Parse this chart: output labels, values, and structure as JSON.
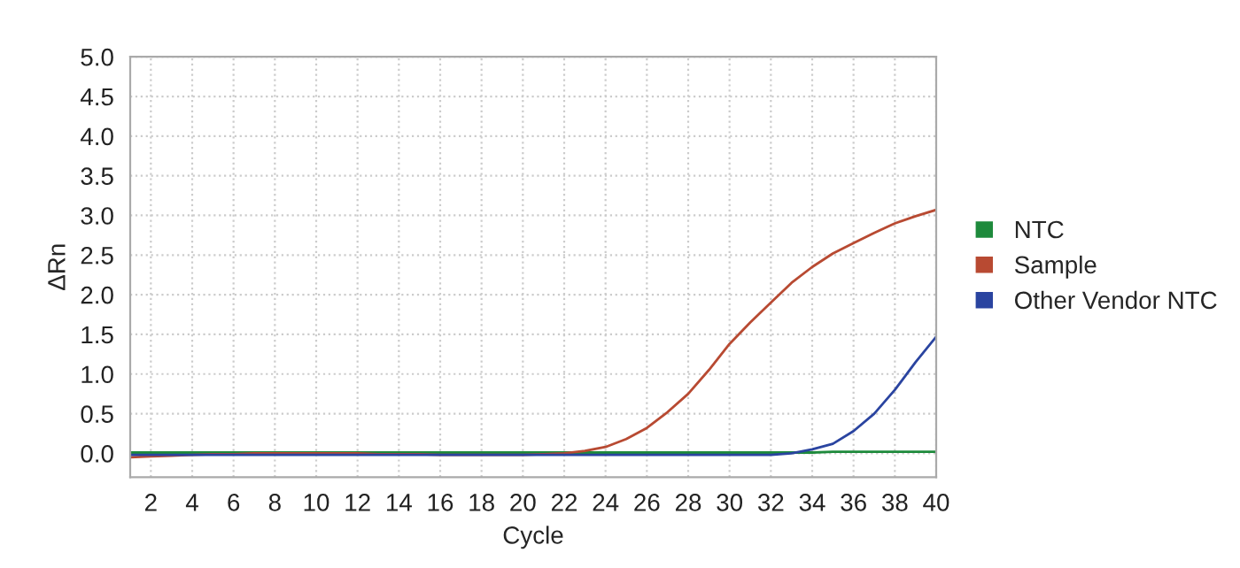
{
  "chart_data": {
    "type": "line",
    "xlabel": "Cycle",
    "ylabel": "ΔRn",
    "x": [
      1,
      2,
      3,
      4,
      5,
      6,
      7,
      8,
      9,
      10,
      11,
      12,
      13,
      14,
      15,
      16,
      17,
      18,
      19,
      20,
      21,
      22,
      23,
      24,
      25,
      26,
      27,
      28,
      29,
      30,
      31,
      32,
      33,
      34,
      35,
      36,
      37,
      38,
      39,
      40
    ],
    "series": [
      {
        "name": "NTC",
        "color": "#1e8a3c",
        "values": [
          0.01,
          0.01,
          0.01,
          0.01,
          0.01,
          0.01,
          0.01,
          0.01,
          0.01,
          0.01,
          0.01,
          0.01,
          0.01,
          0.01,
          0.01,
          0.01,
          0.01,
          0.01,
          0.01,
          0.01,
          0.01,
          0.01,
          0.01,
          0.01,
          0.01,
          0.01,
          0.01,
          0.01,
          0.01,
          0.01,
          0.01,
          0.01,
          0.01,
          0.01,
          0.02,
          0.02,
          0.02,
          0.02,
          0.02,
          0.02
        ]
      },
      {
        "name": "Sample",
        "color": "#b84a32",
        "values": [
          -0.05,
          -0.04,
          -0.03,
          -0.02,
          -0.01,
          -0.01,
          0,
          0,
          0,
          0,
          0,
          0,
          -0.01,
          -0.01,
          -0.01,
          -0.02,
          -0.02,
          -0.02,
          -0.02,
          -0.02,
          -0.01,
          0.0,
          0.03,
          0.08,
          0.18,
          0.32,
          0.52,
          0.75,
          1.05,
          1.38,
          1.65,
          1.9,
          2.15,
          2.35,
          2.52,
          2.65,
          2.78,
          2.9,
          2.99,
          3.07
        ]
      },
      {
        "name": "Other Vendor NTC",
        "color": "#2a44a0",
        "values": [
          -0.02,
          -0.02,
          -0.02,
          -0.02,
          -0.02,
          -0.02,
          -0.02,
          -0.02,
          -0.02,
          -0.02,
          -0.02,
          -0.02,
          -0.02,
          -0.02,
          -0.02,
          -0.02,
          -0.02,
          -0.02,
          -0.02,
          -0.02,
          -0.02,
          -0.02,
          -0.02,
          -0.02,
          -0.02,
          -0.02,
          -0.02,
          -0.02,
          -0.02,
          -0.02,
          -0.02,
          -0.02,
          0.0,
          0.05,
          0.12,
          0.28,
          0.5,
          0.8,
          1.15,
          1.47
        ]
      }
    ],
    "xlim": [
      1,
      40
    ],
    "xticks": [
      2,
      4,
      6,
      8,
      10,
      12,
      14,
      16,
      18,
      20,
      22,
      24,
      26,
      28,
      30,
      32,
      34,
      36,
      38,
      40
    ],
    "ylim": [
      -0.3,
      5.0
    ],
    "yticks": [
      {
        "value": 0,
        "label": "0.0"
      },
      {
        "value": 0.5,
        "label": "0.5"
      },
      {
        "value": 1,
        "label": "1.0"
      },
      {
        "value": 1.5,
        "label": "1.5"
      },
      {
        "value": 2,
        "label": "2.0"
      },
      {
        "value": 2.5,
        "label": "2.5"
      },
      {
        "value": 3,
        "label": "3.0"
      },
      {
        "value": 3.5,
        "label": "3.5"
      },
      {
        "value": 4,
        "label": "4.0"
      },
      {
        "value": 4.5,
        "label": "4.5"
      },
      {
        "value": 5,
        "label": "5.0"
      }
    ],
    "grid": true,
    "legend": "right",
    "line_style": "solid",
    "marker": "none"
  }
}
